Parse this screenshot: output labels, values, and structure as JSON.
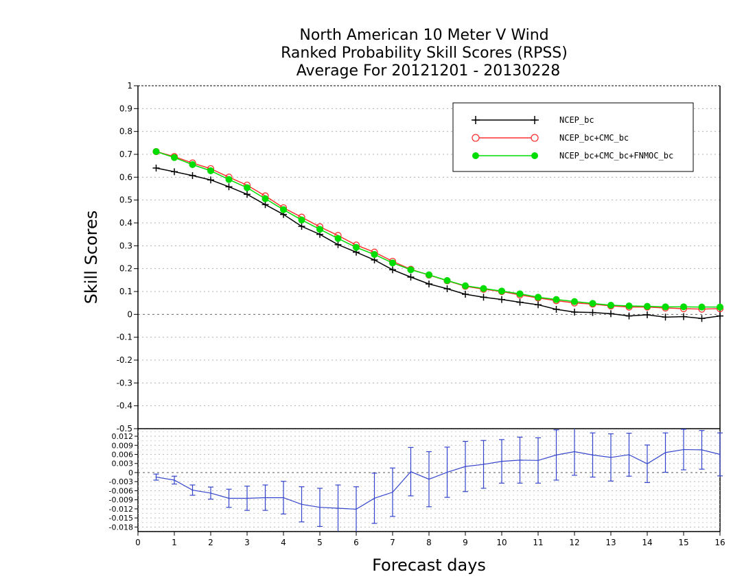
{
  "chart_data": [
    {
      "type": "line",
      "title": [
        "North American 10 Meter V Wind",
        "Ranked Probability Skill Scores (RPSS)",
        "Average For 20121201 - 20130228"
      ],
      "xlabel": "Forecast days",
      "ylabel": "Skill Scores",
      "xlim": [
        0,
        16
      ],
      "ylim": [
        -0.5,
        1
      ],
      "x_ticks": [
        "0",
        "1",
        "2",
        "3",
        "4",
        "5",
        "6",
        "7",
        "8",
        "9",
        "10",
        "11",
        "12",
        "13",
        "14",
        "15",
        "16"
      ],
      "y_ticks": [
        "1",
        "0.9",
        "0.8",
        "0.7",
        "0.6",
        "0.5",
        "0.4",
        "0.3",
        "0.2",
        "0.1",
        "0",
        "-0.1",
        "-0.2",
        "-0.3",
        "-0.4",
        "-0.5"
      ],
      "grid": true,
      "legend_position": "top-right",
      "x": [
        0.5,
        1,
        1.5,
        2,
        2.5,
        3,
        3.5,
        4,
        4.5,
        5,
        5.5,
        6,
        6.5,
        7,
        7.5,
        8,
        8.5,
        9,
        9.5,
        10,
        10.5,
        11,
        11.5,
        12,
        12.5,
        13,
        13.5,
        14,
        14.5,
        15,
        15.5,
        16
      ],
      "series": [
        {
          "name": "NCEP_bc",
          "color": "#000000",
          "marker": "plus",
          "values": [
            0.64,
            0.624,
            0.607,
            0.588,
            0.558,
            0.525,
            0.48,
            0.437,
            0.385,
            0.35,
            0.305,
            0.272,
            0.238,
            0.195,
            0.163,
            0.133,
            0.112,
            0.088,
            0.075,
            0.065,
            0.053,
            0.042,
            0.022,
            0.01,
            0.008,
            0.003,
            -0.007,
            -0.002,
            -0.012,
            -0.01,
            -0.018,
            -0.007
          ]
        },
        {
          "name": "NCEP_bc+CMC_bc",
          "color": "#ff3030",
          "marker": "open-circle",
          "values": [
            0.712,
            0.69,
            0.662,
            0.637,
            0.6,
            0.565,
            0.518,
            0.466,
            0.425,
            0.383,
            0.345,
            0.303,
            0.272,
            0.232,
            0.197,
            0.172,
            0.147,
            0.123,
            0.11,
            0.1,
            0.085,
            0.072,
            0.06,
            0.05,
            0.045,
            0.037,
            0.032,
            0.032,
            0.028,
            0.025,
            0.023,
            0.025
          ]
        },
        {
          "name": "NCEP_bc+CMC_bc+FNMOC_bc",
          "color": "#00dd00",
          "marker": "filled-circle",
          "values": [
            0.712,
            0.686,
            0.655,
            0.628,
            0.59,
            0.554,
            0.506,
            0.458,
            0.413,
            0.372,
            0.332,
            0.293,
            0.262,
            0.225,
            0.195,
            0.173,
            0.148,
            0.125,
            0.113,
            0.102,
            0.09,
            0.075,
            0.065,
            0.056,
            0.048,
            0.04,
            0.037,
            0.035,
            0.033,
            0.033,
            0.032,
            0.032
          ]
        }
      ]
    },
    {
      "type": "line",
      "xlim": [
        0,
        16
      ],
      "ylim": [
        -0.0195,
        0.0145
      ],
      "y_ticks": [
        "0.012",
        "0.009",
        "0.006",
        "0.003",
        "0",
        "-0.003",
        "-0.006",
        "-0.009",
        "-0.012",
        "-0.015",
        "-0.018"
      ],
      "grid": true,
      "x": [
        0.5,
        1,
        1.5,
        2,
        2.5,
        3,
        3.5,
        4,
        4.5,
        5,
        5.5,
        6,
        6.5,
        7,
        7.5,
        8,
        8.5,
        9,
        9.5,
        10,
        10.5,
        11,
        11.5,
        12,
        12.5,
        13,
        13.5,
        14,
        14.5,
        15,
        15.5,
        16
      ],
      "series": [
        {
          "name": "",
          "color": "#3344cc",
          "values": [
            -0.0015,
            -0.0025,
            -0.0058,
            -0.0068,
            -0.0085,
            -0.0085,
            -0.0083,
            -0.0083,
            -0.0105,
            -0.0115,
            -0.0118,
            -0.0121,
            -0.0085,
            -0.0065,
            0.0003,
            -0.0022,
            0.0001,
            0.002,
            0.0027,
            0.0037,
            0.0041,
            0.004,
            0.0058,
            0.0069,
            0.0058,
            0.005,
            0.0059,
            0.0029,
            0.0066,
            0.0076,
            0.0075,
            0.006
          ],
          "error_low": [
            -0.0025,
            -0.0038,
            -0.0075,
            -0.0088,
            -0.0115,
            -0.0125,
            -0.0125,
            -0.0137,
            -0.0163,
            -0.0178,
            -0.0195,
            -0.0195,
            -0.0168,
            -0.0145,
            -0.0077,
            -0.0113,
            -0.0082,
            -0.0063,
            -0.0052,
            -0.0035,
            -0.0035,
            -0.0035,
            -0.0025,
            -0.0009,
            -0.0015,
            -0.0028,
            -0.0012,
            -0.0033,
            0.0001,
            0.0009,
            0.0011,
            -0.0011
          ],
          "error_high": [
            -0.0005,
            -0.0012,
            -0.0041,
            -0.0048,
            -0.0055,
            -0.0045,
            -0.0041,
            -0.0029,
            -0.0047,
            -0.0052,
            -0.0041,
            -0.0047,
            -0.0002,
            0.0015,
            0.0083,
            0.0069,
            0.0084,
            0.0103,
            0.0106,
            0.0109,
            0.0117,
            0.0115,
            0.0141,
            0.0147,
            0.0131,
            0.0128,
            0.013,
            0.0091,
            0.0131,
            0.0143,
            0.0139,
            0.0131
          ]
        }
      ]
    }
  ]
}
